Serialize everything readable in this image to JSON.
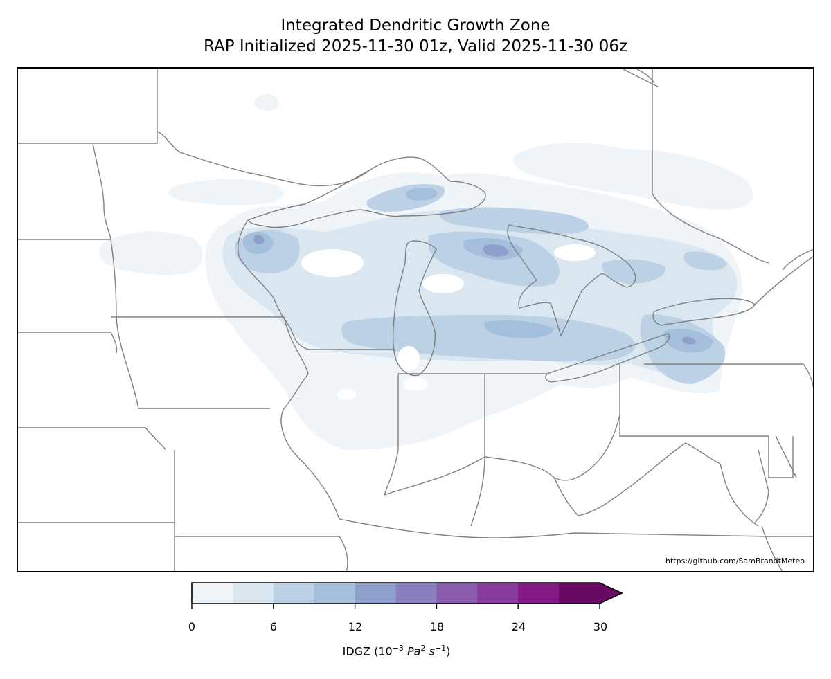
{
  "title": {
    "line1": "Integrated Dendritic Growth Zone",
    "line2": "RAP Initialized 2025-11-30 01z, Valid 2025-11-30 06z"
  },
  "credit": "https://github.com/SamBrandtMeteo",
  "colorbar": {
    "ticks": [
      "0",
      "6",
      "12",
      "18",
      "24",
      "30"
    ],
    "label_prefix": "IDGZ (10",
    "label_exp": "−3",
    "label_unit1": "Pa",
    "label_unit1_exp": "2",
    "label_unit2": "s",
    "label_unit2_exp": "−1",
    "label_suffix": ")",
    "colors": [
      "#eef4f8",
      "#dae6f0",
      "#bcd0e6",
      "#a4bfdb",
      "#8f9fcc",
      "#8c7fbf",
      "#8b5cae",
      "#883d9e",
      "#841a86",
      "#680a63"
    ],
    "extend": "max"
  },
  "map_style": {
    "border_color": "#808080",
    "frame_color": "#000000"
  }
}
